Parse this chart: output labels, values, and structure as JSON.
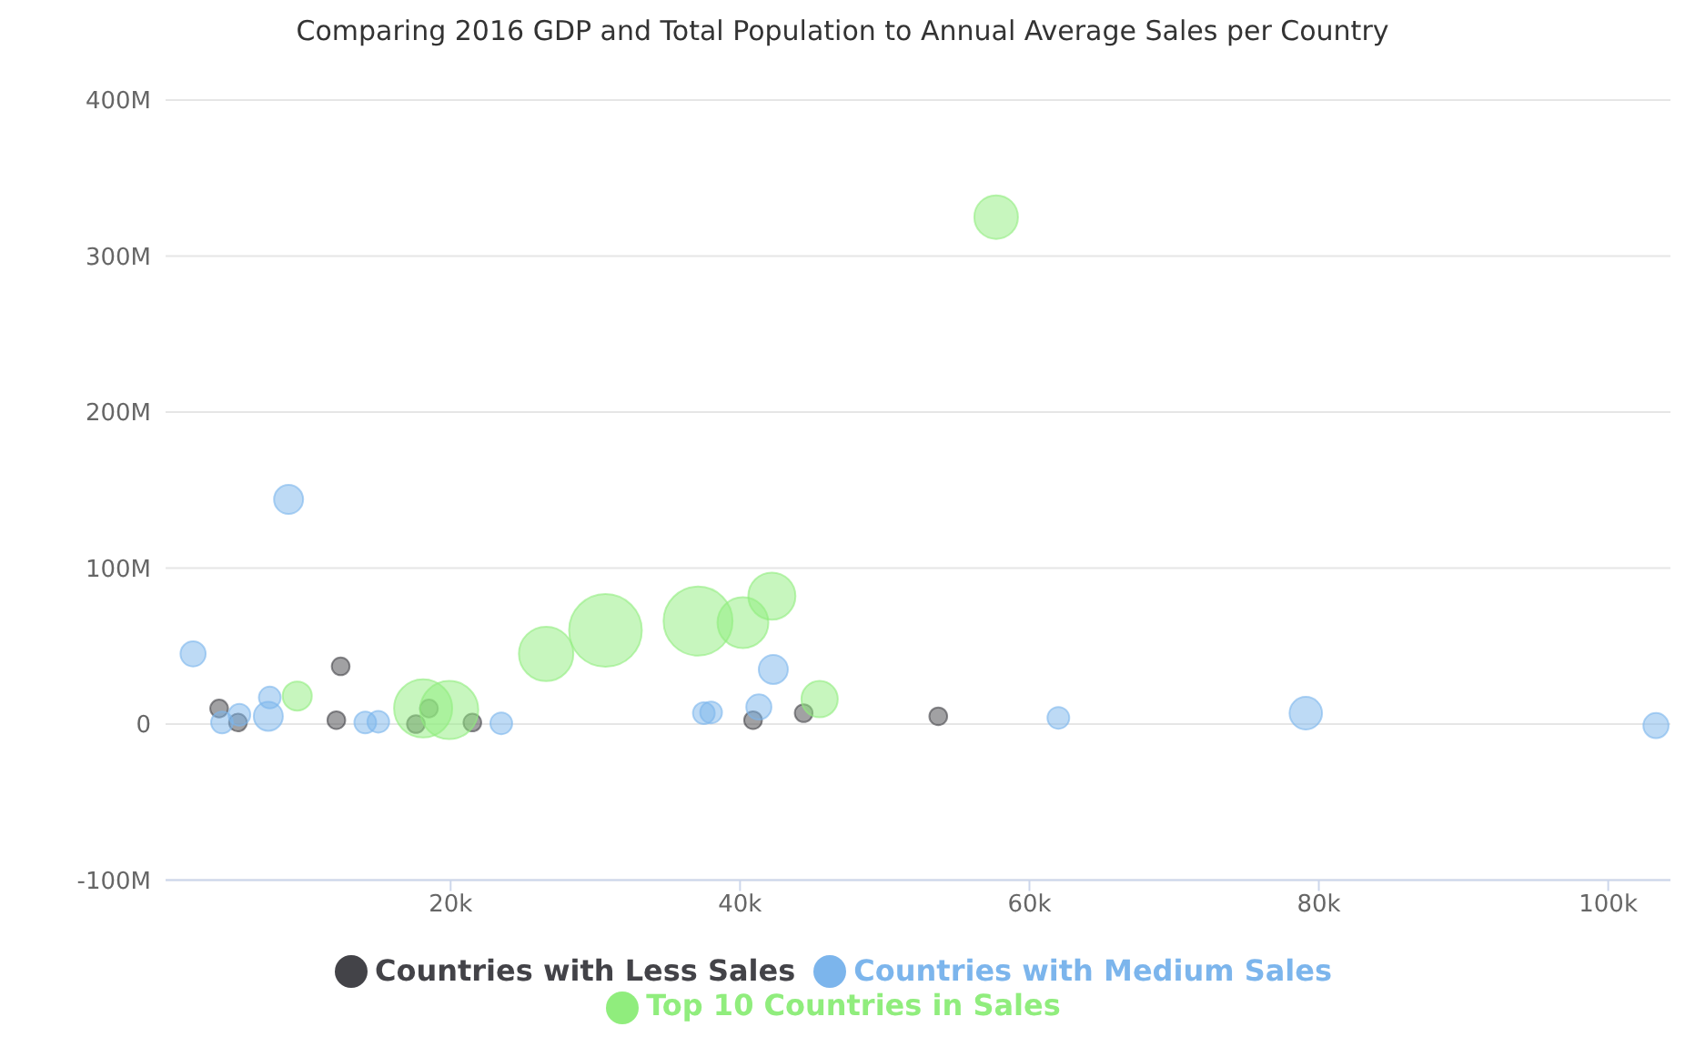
{
  "chart_data": {
    "type": "bubble",
    "title": "Comparing 2016 GDP and Total Population to Annual Average Sales per Country",
    "xlim": [
      0.3,
      104.3
    ],
    "xticks": [
      {
        "value": 20,
        "label": "20k"
      },
      {
        "value": 40,
        "label": "40k"
      },
      {
        "value": 60,
        "label": "60k"
      },
      {
        "value": 80,
        "label": "80k"
      },
      {
        "value": 100,
        "label": "100k"
      }
    ],
    "ylim": [
      -100,
      400
    ],
    "yticks": [
      {
        "value": -100,
        "label": "-100M"
      },
      {
        "value": 0,
        "label": "0"
      },
      {
        "value": 100,
        "label": "100M"
      },
      {
        "value": 200,
        "label": "200M"
      },
      {
        "value": 300,
        "label": "300M"
      },
      {
        "value": 400,
        "label": "400M"
      }
    ],
    "grid": "y",
    "legend": "bottom",
    "series": [
      {
        "name": "Countries with Less Sales",
        "color": "#434348",
        "x": [
          4.0,
          5.3,
          12.4,
          12.1,
          17.6,
          18.5,
          21.5,
          40.9,
          44.4,
          53.7
        ],
        "values": [
          10,
          1,
          37,
          2.5,
          0,
          10,
          1,
          2.5,
          7,
          5
        ],
        "sizes": [
          0.06,
          0.06,
          0.06,
          0.06,
          0.06,
          0.06,
          0.06,
          0.06,
          0.06,
          0.06
        ]
      },
      {
        "name": "Countries with Medium Sales",
        "color": "#7cb5ec",
        "x": [
          8.8,
          2.2,
          4.2,
          5.4,
          7.5,
          7.4,
          14.1,
          15.0,
          23.5,
          37.5,
          38.0,
          41.3,
          42.3,
          62.0,
          79.1,
          103.3
        ],
        "values": [
          144,
          45,
          1,
          6,
          17,
          5,
          1,
          1.5,
          0.5,
          7,
          7.5,
          11,
          35,
          4,
          7,
          -1
        ],
        "sizes": [
          0.16,
          0.12,
          0.09,
          0.09,
          0.09,
          0.16,
          0.09,
          0.09,
          0.09,
          0.09,
          0.09,
          0.12,
          0.16,
          0.09,
          0.2,
          0.12
        ]
      },
      {
        "name": "Top 10 Countries in Sales",
        "color": "#90ed7d",
        "x": [
          9.4,
          18.1,
          19.9,
          26.6,
          30.7,
          37.1,
          40.2,
          42.2,
          45.5,
          57.7
        ],
        "values": [
          18,
          10,
          9,
          45,
          60,
          66,
          65,
          82,
          16,
          325
        ],
        "sizes": [
          0.16,
          0.64,
          0.64,
          0.56,
          1,
          0.9,
          0.49,
          0.42,
          0.25,
          0.36
        ]
      }
    ]
  }
}
